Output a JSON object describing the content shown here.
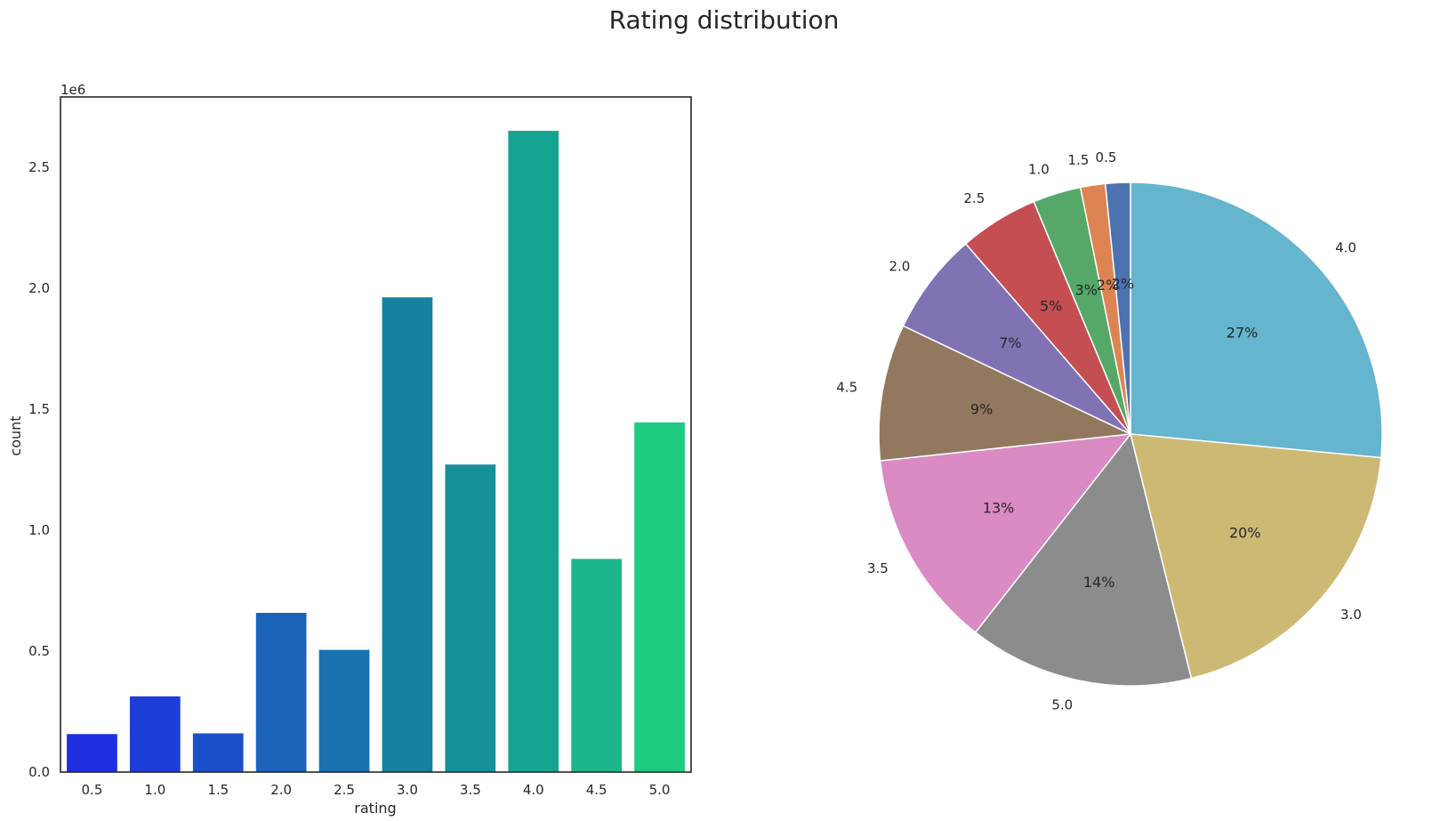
{
  "figure": {
    "title": "Rating distribution"
  },
  "chart_data": [
    {
      "type": "bar",
      "xlabel": "rating",
      "ylabel": "count",
      "y_offset_label": "1e6",
      "categories": [
        "0.5",
        "1.0",
        "1.5",
        "2.0",
        "2.5",
        "3.0",
        "3.5",
        "4.0",
        "4.5",
        "5.0"
      ],
      "values": [
        0.157,
        0.313,
        0.16,
        0.658,
        0.505,
        1.962,
        1.271,
        2.65,
        0.881,
        1.445
      ],
      "value_unit": "1e6",
      "ylim": [
        0,
        2.79
      ],
      "yticks": [
        "0.0",
        "0.5",
        "1.0",
        "1.5",
        "2.0",
        "2.5"
      ],
      "colors": [
        "#1f2ee0",
        "#1d3dd8",
        "#1c50c8",
        "#1a63b8",
        "#1872b0",
        "#1781a0",
        "#16919a",
        "#16a492",
        "#1bb68a",
        "#1ecb80"
      ],
      "grid": false
    },
    {
      "type": "pie",
      "labels": [
        "4.0",
        "3.0",
        "5.0",
        "3.5",
        "4.5",
        "2.0",
        "2.5",
        "1.0",
        "1.5",
        "0.5"
      ],
      "values": [
        26.6,
        19.7,
        14.5,
        12.8,
        8.8,
        6.6,
        5.1,
        3.1,
        1.6,
        1.6
      ],
      "pct_labels": [
        "27%",
        "20%",
        "14%",
        "13%",
        "9%",
        "7%",
        "5%",
        "3%",
        "2%",
        "2%"
      ],
      "colors": [
        "#64b5cd",
        "#ccb974",
        "#8c8c8c",
        "#da8bc3",
        "#937860",
        "#8172b3",
        "#c44e52",
        "#55a868",
        "#dd8452",
        "#4c72b0"
      ],
      "start_angle": 90,
      "direction": "clockwise"
    }
  ]
}
